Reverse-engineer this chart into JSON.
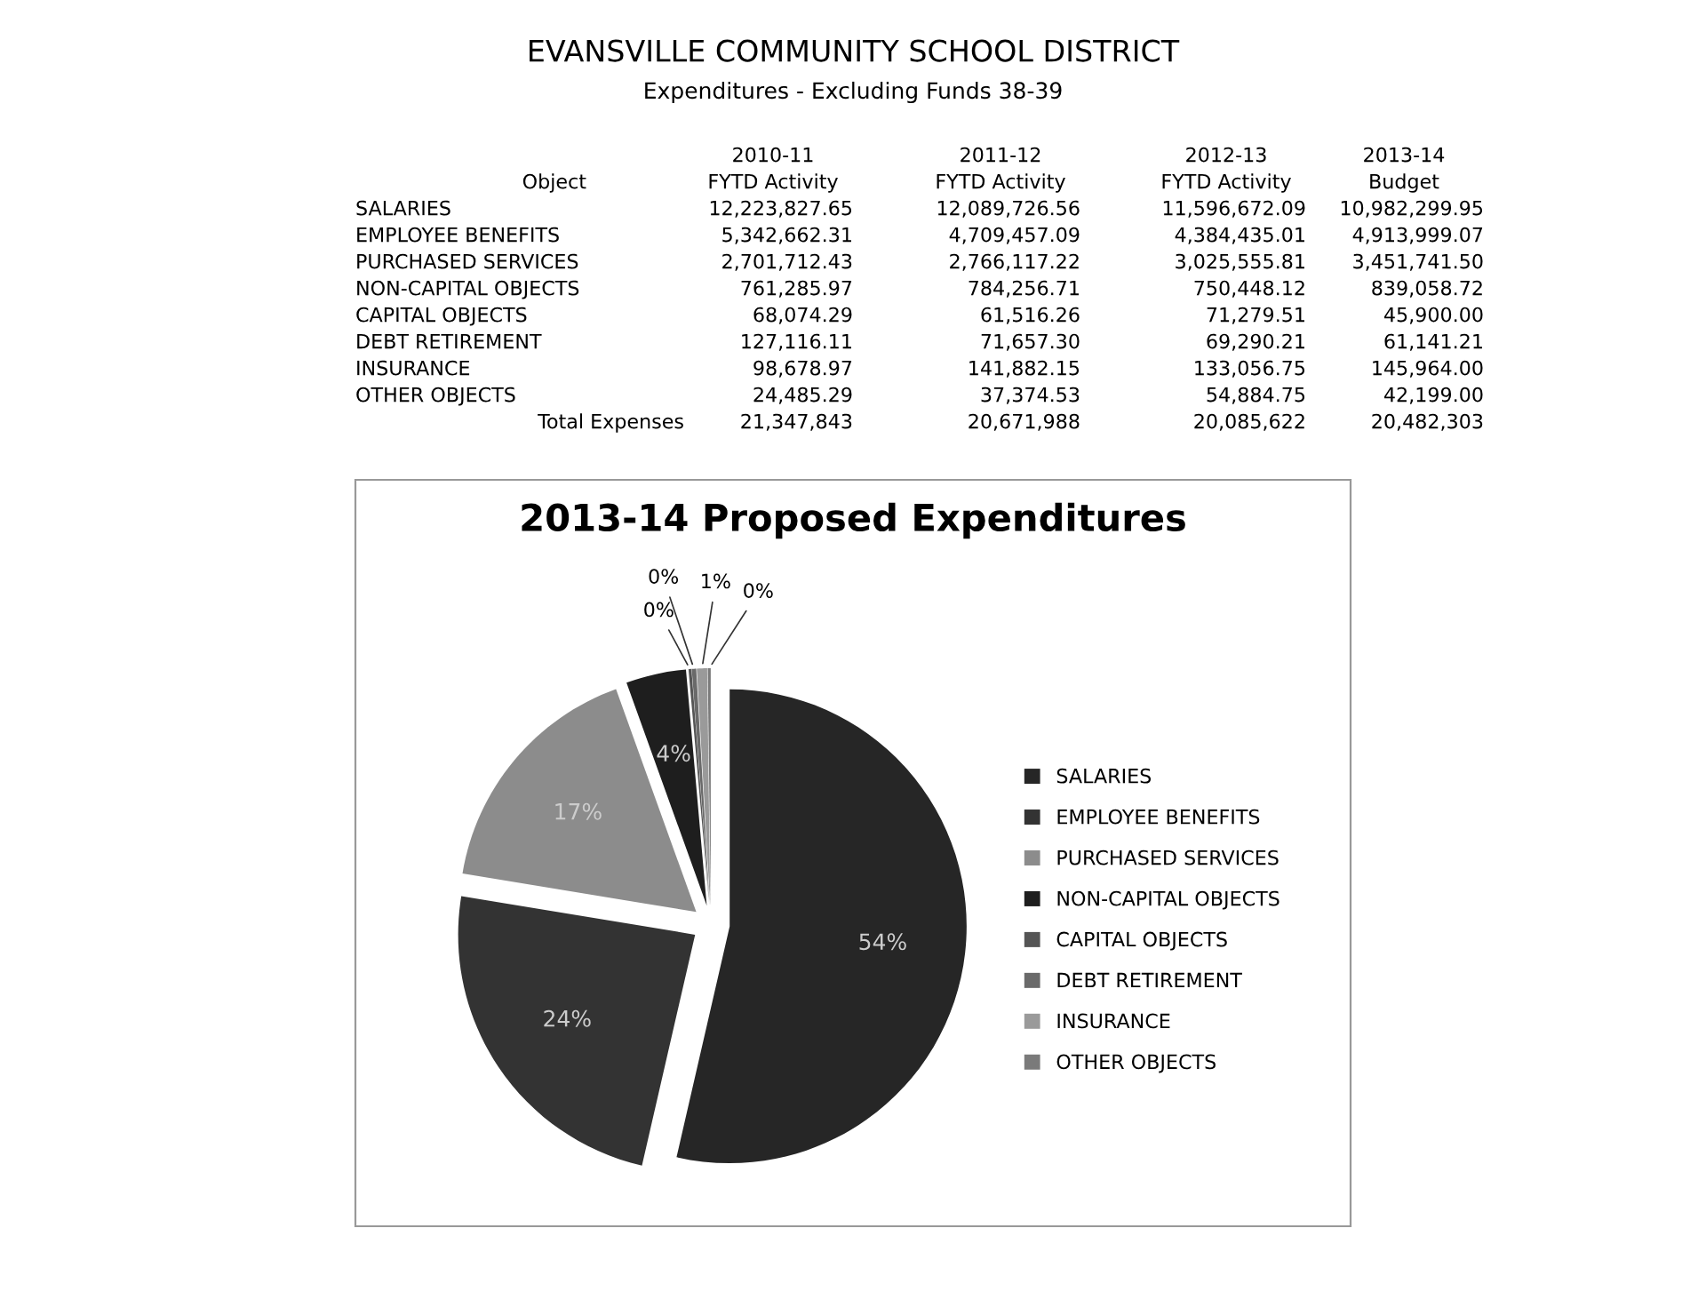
{
  "chart_data": {
    "type": "pie",
    "title": "2013-14 Proposed Expenditures",
    "categories": [
      "SALARIES",
      "EMPLOYEE BENEFITS",
      "PURCHASED SERVICES",
      "NON-CAPITAL OBJECTS",
      "CAPITAL OBJECTS",
      "DEBT RETIREMENT",
      "INSURANCE",
      "OTHER OBJECTS"
    ],
    "values": [
      53.6,
      24.0,
      16.9,
      4.1,
      0.2,
      0.3,
      0.7,
      0.2
    ],
    "value_labels": [
      "54%",
      "24%",
      "17%",
      "4%",
      "0%",
      "0%",
      "1%",
      "0%"
    ],
    "colors": [
      "#262626",
      "#333333",
      "#8c8c8c",
      "#1e1e1e",
      "#555555",
      "#6a6a6a",
      "#9a9a9a",
      "#7a7a7a"
    ],
    "legend": "right",
    "annotations": [
      "EVANSVILLE COMMUNITY SCHOOL DISTRICT",
      "Expenditures - Excluding Funds 38-39",
      "2010-11",
      "2011-12",
      "2012-13",
      "2013-14",
      "Object",
      "FYTD Activity",
      "FYTD Activity",
      "FYTD Activity",
      "Budget",
      "SALARIES",
      "12,223,827.65",
      "12,089,726.56",
      "11,596,672.09",
      "10,982,299.95",
      "EMPLOYEE BENEFITS",
      "5,342,662.31",
      "4,709,457.09",
      "4,384,435.01",
      "4,913,999.07",
      "PURCHASED SERVICES",
      "2,701,712.43",
      "2,766,117.22",
      "3,025,555.81",
      "3,451,741.50",
      "NON-CAPITAL OBJECTS",
      "761,285.97",
      "784,256.71",
      "750,448.12",
      "839,058.72",
      "CAPITAL OBJECTS",
      "68,074.29",
      "61,516.26",
      "71,279.51",
      "45,900.00",
      "DEBT RETIREMENT",
      "127,116.11",
      "71,657.30",
      "69,290.21",
      "61,141.21",
      "INSURANCE",
      "98,678.97",
      "141,882.15",
      "133,056.75",
      "145,964.00",
      "OTHER OBJECTS",
      "24,485.29",
      "37,374.53",
      "54,884.75",
      "42,199.00",
      "Total Expenses",
      "21,347,843",
      "20,671,988",
      "20,085,622",
      "20,482,303"
    ]
  }
}
